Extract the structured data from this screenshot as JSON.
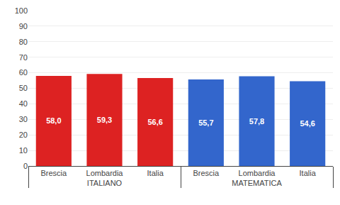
{
  "chart_data": {
    "type": "bar",
    "categories": [
      "Brescia",
      "Lombardia",
      "Italia"
    ],
    "series": [
      {
        "name": "ITALIANO",
        "color": "#dd2222",
        "values": [
          58.0,
          59.3,
          56.6
        ],
        "value_labels": [
          "58,0",
          "59,3",
          "56,6"
        ]
      },
      {
        "name": "MATEMATICA",
        "color": "#3366cc",
        "values": [
          55.7,
          57.8,
          54.6
        ],
        "value_labels": [
          "55,7",
          "57,8",
          "54,6"
        ]
      }
    ],
    "data_labels": true,
    "ylim": [
      0,
      100
    ],
    "yticks": [
      0,
      10,
      20,
      30,
      40,
      50,
      60,
      70,
      80,
      90,
      100
    ],
    "grid": true
  }
}
